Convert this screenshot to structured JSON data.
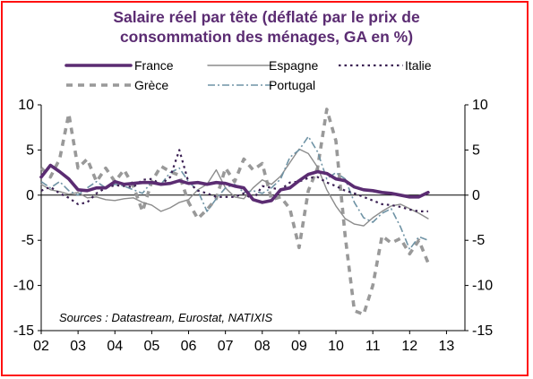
{
  "title_line1": "Salaire réel par tête (déflaté par le prix de",
  "title_line2": "consommation des ménages, GA en %)",
  "source": "Sources : Datastream, Eurostat, NATIXIS",
  "chart_data": {
    "type": "line",
    "title": "Salaire réel par tête (déflaté par le prix de consommation des ménages, GA en %)",
    "xlim": [
      2002,
      2013.5
    ],
    "ylim": [
      -15,
      10
    ],
    "y_ticks": [
      10,
      5,
      0,
      -5,
      -10,
      -15
    ],
    "y_tick_labels": [
      "10",
      "5",
      "0",
      "-5",
      "-10",
      "-15"
    ],
    "x_tick_labels": [
      "02",
      "03",
      "04",
      "05",
      "06",
      "07",
      "08",
      "09",
      "10",
      "11",
      "12",
      "13"
    ],
    "legend": "top",
    "series": [
      {
        "name": "France",
        "color": "#5b2c72",
        "style": "solid-thick",
        "points": [
          [
            2002.0,
            2.0
          ],
          [
            2002.25,
            3.3
          ],
          [
            2002.5,
            2.6
          ],
          [
            2002.75,
            1.8
          ],
          [
            2003.0,
            0.6
          ],
          [
            2003.25,
            0.5
          ],
          [
            2003.5,
            0.8
          ],
          [
            2003.75,
            0.8
          ],
          [
            2004.0,
            1.5
          ],
          [
            2004.25,
            1.2
          ],
          [
            2004.5,
            1.3
          ],
          [
            2004.75,
            1.4
          ],
          [
            2005.0,
            1.4
          ],
          [
            2005.25,
            1.2
          ],
          [
            2005.5,
            1.3
          ],
          [
            2005.75,
            1.6
          ],
          [
            2006.0,
            1.3
          ],
          [
            2006.25,
            1.4
          ],
          [
            2006.5,
            1.2
          ],
          [
            2006.75,
            1.4
          ],
          [
            2007.0,
            1.3
          ],
          [
            2007.25,
            1.0
          ],
          [
            2007.5,
            0.8
          ],
          [
            2007.75,
            -0.5
          ],
          [
            2008.0,
            -0.8
          ],
          [
            2008.25,
            -0.6
          ],
          [
            2008.5,
            0.6
          ],
          [
            2008.75,
            0.8
          ],
          [
            2009.0,
            1.6
          ],
          [
            2009.25,
            2.3
          ],
          [
            2009.5,
            2.6
          ],
          [
            2009.75,
            2.4
          ],
          [
            2010.0,
            1.8
          ],
          [
            2010.25,
            1.6
          ],
          [
            2010.5,
            0.9
          ],
          [
            2010.75,
            0.6
          ],
          [
            2011.0,
            0.5
          ],
          [
            2011.25,
            0.3
          ],
          [
            2011.5,
            0.2
          ],
          [
            2011.75,
            0.0
          ],
          [
            2012.0,
            -0.2
          ],
          [
            2012.25,
            -0.2
          ],
          [
            2012.5,
            0.3
          ]
        ]
      },
      {
        "name": "Espagne",
        "color": "#8c8c8c",
        "style": "solid-thin",
        "points": [
          [
            2002.0,
            1.2
          ],
          [
            2002.25,
            0.6
          ],
          [
            2002.5,
            0.4
          ],
          [
            2002.75,
            0.1
          ],
          [
            2003.0,
            0.3
          ],
          [
            2003.25,
            -0.3
          ],
          [
            2003.5,
            -0.2
          ],
          [
            2003.75,
            -0.5
          ],
          [
            2004.0,
            -0.6
          ],
          [
            2004.25,
            -0.4
          ],
          [
            2004.5,
            -0.3
          ],
          [
            2004.75,
            -0.8
          ],
          [
            2005.0,
            -1.1
          ],
          [
            2005.25,
            -1.8
          ],
          [
            2005.5,
            -1.4
          ],
          [
            2005.75,
            -0.8
          ],
          [
            2006.0,
            -0.5
          ],
          [
            2006.25,
            0.6
          ],
          [
            2006.5,
            1.2
          ],
          [
            2006.75,
            2.8
          ],
          [
            2007.0,
            0.8
          ],
          [
            2007.25,
            -0.2
          ],
          [
            2007.5,
            -0.4
          ],
          [
            2007.75,
            0.8
          ],
          [
            2008.0,
            1.7
          ],
          [
            2008.25,
            1.2
          ],
          [
            2008.5,
            2.1
          ],
          [
            2008.75,
            3.6
          ],
          [
            2009.0,
            5.1
          ],
          [
            2009.25,
            4.6
          ],
          [
            2009.5,
            3.1
          ],
          [
            2009.75,
            0.6
          ],
          [
            2010.0,
            -1.2
          ],
          [
            2010.25,
            -2.6
          ],
          [
            2010.5,
            -3.2
          ],
          [
            2010.75,
            -3.4
          ],
          [
            2011.0,
            -2.5
          ],
          [
            2011.25,
            -1.8
          ],
          [
            2011.5,
            -1.2
          ],
          [
            2011.75,
            -1.0
          ],
          [
            2012.0,
            -1.5
          ],
          [
            2012.25,
            -2.0
          ],
          [
            2012.5,
            -2.6
          ]
        ]
      },
      {
        "name": "Italie",
        "color": "#3a1f52",
        "style": "dotted",
        "points": [
          [
            2002.0,
            0.5
          ],
          [
            2002.25,
            0.9
          ],
          [
            2002.5,
            0.2
          ],
          [
            2002.75,
            -0.3
          ],
          [
            2003.0,
            -1.0
          ],
          [
            2003.25,
            -0.8
          ],
          [
            2003.5,
            0.2
          ],
          [
            2003.75,
            0.8
          ],
          [
            2004.0,
            1.1
          ],
          [
            2004.25,
            1.0
          ],
          [
            2004.5,
            0.9
          ],
          [
            2004.75,
            1.7
          ],
          [
            2005.0,
            1.8
          ],
          [
            2005.25,
            1.2
          ],
          [
            2005.5,
            2.0
          ],
          [
            2005.75,
            5.0
          ],
          [
            2006.0,
            1.4
          ],
          [
            2006.25,
            0.5
          ],
          [
            2006.5,
            0.2
          ],
          [
            2006.75,
            -0.2
          ],
          [
            2007.0,
            -0.2
          ],
          [
            2007.25,
            -0.2
          ],
          [
            2007.5,
            0.2
          ],
          [
            2007.75,
            -0.5
          ],
          [
            2008.0,
            1.0
          ],
          [
            2008.25,
            0.8
          ],
          [
            2008.5,
            0.6
          ],
          [
            2008.75,
            1.4
          ],
          [
            2009.0,
            1.5
          ],
          [
            2009.25,
            1.9
          ],
          [
            2009.5,
            2.0
          ],
          [
            2009.75,
            1.4
          ],
          [
            2010.0,
            1.0
          ],
          [
            2010.25,
            0.5
          ],
          [
            2010.5,
            0.2
          ],
          [
            2010.75,
            -0.2
          ],
          [
            2011.0,
            -0.6
          ],
          [
            2011.25,
            -1.0
          ],
          [
            2011.5,
            -1.1
          ],
          [
            2011.75,
            -1.3
          ],
          [
            2012.0,
            -1.6
          ],
          [
            2012.25,
            -1.8
          ],
          [
            2012.5,
            -1.8
          ]
        ]
      },
      {
        "name": "Grèce",
        "color": "#999999",
        "style": "dashed-thick",
        "points": [
          [
            2002.0,
            3.0
          ],
          [
            2002.25,
            2.0
          ],
          [
            2002.5,
            4.0
          ],
          [
            2002.75,
            9.0
          ],
          [
            2003.0,
            3.0
          ],
          [
            2003.25,
            4.0
          ],
          [
            2003.5,
            1.5
          ],
          [
            2003.75,
            3.0
          ],
          [
            2004.0,
            1.5
          ],
          [
            2004.25,
            2.8
          ],
          [
            2004.5,
            1.0
          ],
          [
            2004.75,
            -1.8
          ],
          [
            2005.0,
            1.5
          ],
          [
            2005.25,
            3.2
          ],
          [
            2005.5,
            2.6
          ],
          [
            2005.75,
            2.2
          ],
          [
            2006.0,
            -0.8
          ],
          [
            2006.25,
            -2.6
          ],
          [
            2006.5,
            -1.6
          ],
          [
            2006.75,
            -0.4
          ],
          [
            2007.0,
            3.0
          ],
          [
            2007.25,
            1.5
          ],
          [
            2007.5,
            4.0
          ],
          [
            2007.75,
            2.8
          ],
          [
            2008.0,
            3.5
          ],
          [
            2008.25,
            -0.5
          ],
          [
            2008.5,
            -0.2
          ],
          [
            2008.75,
            -1.5
          ],
          [
            2009.0,
            -5.8
          ],
          [
            2009.25,
            0.5
          ],
          [
            2009.5,
            3.0
          ],
          [
            2009.75,
            9.5
          ],
          [
            2010.0,
            6.0
          ],
          [
            2010.25,
            -4.5
          ],
          [
            2010.5,
            -12.8
          ],
          [
            2010.75,
            -13.2
          ],
          [
            2011.0,
            -10.0
          ],
          [
            2011.25,
            -4.5
          ],
          [
            2011.5,
            -5.3
          ],
          [
            2011.75,
            -4.8
          ],
          [
            2012.0,
            -6.5
          ],
          [
            2012.25,
            -5.0
          ],
          [
            2012.5,
            -7.5
          ]
        ]
      },
      {
        "name": "Portugal",
        "color": "#6f93a5",
        "style": "dash-dot",
        "points": [
          [
            2002.0,
            1.5
          ],
          [
            2002.25,
            0.8
          ],
          [
            2002.5,
            1.5
          ],
          [
            2002.75,
            0.5
          ],
          [
            2003.0,
            0.0
          ],
          [
            2003.25,
            0.8
          ],
          [
            2003.5,
            1.5
          ],
          [
            2003.75,
            0.8
          ],
          [
            2004.0,
            1.2
          ],
          [
            2004.25,
            1.0
          ],
          [
            2004.5,
            0.6
          ],
          [
            2004.75,
            0.2
          ],
          [
            2005.0,
            1.5
          ],
          [
            2005.25,
            1.2
          ],
          [
            2005.5,
            2.5
          ],
          [
            2005.75,
            3.0
          ],
          [
            2006.0,
            1.5
          ],
          [
            2006.25,
            0.5
          ],
          [
            2006.5,
            -1.8
          ],
          [
            2006.75,
            -0.4
          ],
          [
            2007.0,
            0.8
          ],
          [
            2007.25,
            1.2
          ],
          [
            2007.5,
            0.3
          ],
          [
            2007.75,
            0.5
          ],
          [
            2008.0,
            0.2
          ],
          [
            2008.25,
            0.8
          ],
          [
            2008.5,
            1.8
          ],
          [
            2008.75,
            4.2
          ],
          [
            2009.0,
            5.0
          ],
          [
            2009.25,
            6.5
          ],
          [
            2009.5,
            4.8
          ],
          [
            2009.75,
            1.8
          ],
          [
            2010.0,
            2.5
          ],
          [
            2010.25,
            1.8
          ],
          [
            2010.5,
            -0.8
          ],
          [
            2010.75,
            -2.5
          ],
          [
            2011.0,
            -3.0
          ],
          [
            2011.25,
            -2.0
          ],
          [
            2011.5,
            -1.5
          ],
          [
            2011.75,
            -3.5
          ],
          [
            2012.0,
            -6.0
          ],
          [
            2012.25,
            -4.6
          ],
          [
            2012.5,
            -5.0
          ]
        ]
      }
    ]
  }
}
